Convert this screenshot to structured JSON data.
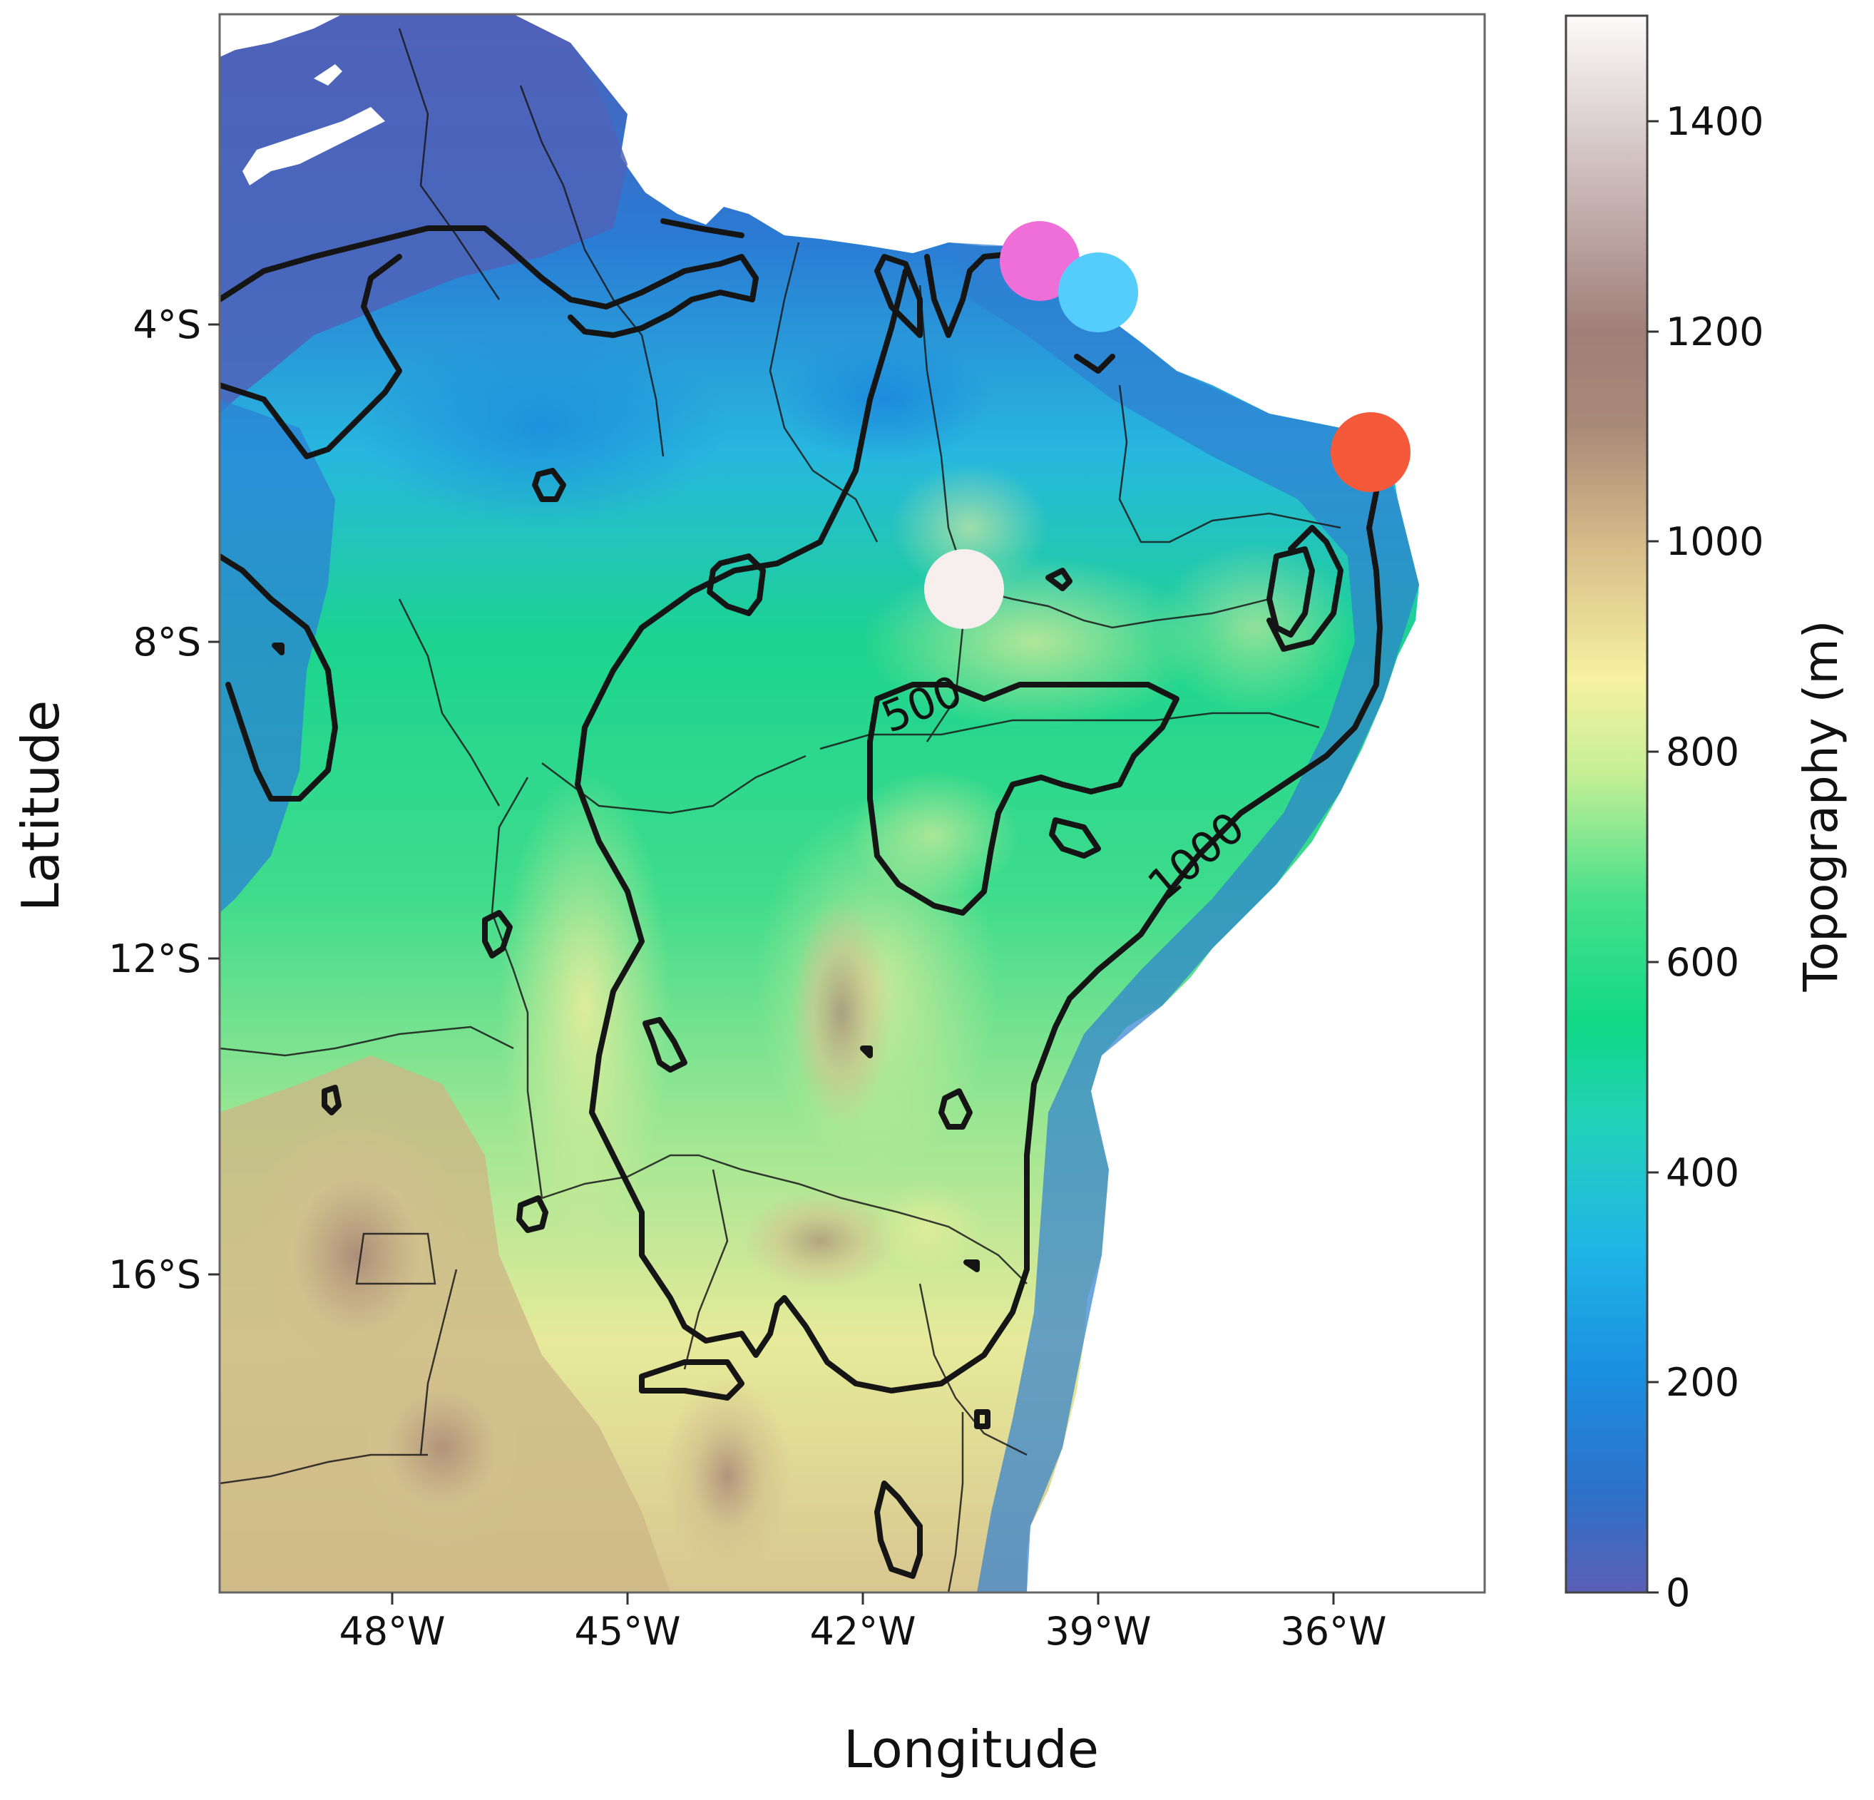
{
  "figure": {
    "xlabel": "Longitude",
    "ylabel": "Latitude",
    "colorbar_label": "Topography (m)"
  },
  "chart_data": {
    "type": "heatmap",
    "description_type": "topographic map with contours",
    "x_axis": {
      "label": "Longitude",
      "range_deg": [
        -50.5,
        -32.8
      ],
      "ticks": [
        {
          "value": -48,
          "label": "48°W"
        },
        {
          "value": -45,
          "label": "45°W"
        },
        {
          "value": -42,
          "label": "42°W"
        },
        {
          "value": -39,
          "label": "39°W"
        },
        {
          "value": -36,
          "label": "36°W"
        }
      ]
    },
    "y_axis": {
      "label": "Latitude",
      "range_deg": [
        0,
        -19.8
      ],
      "ticks": [
        {
          "value": -4,
          "label": "4°S"
        },
        {
          "value": -8,
          "label": "8°S"
        },
        {
          "value": -12,
          "label": "12°S"
        },
        {
          "value": -16,
          "label": "16°S"
        }
      ]
    },
    "colorbar": {
      "label": "Topography (m)",
      "range": [
        0,
        1500
      ],
      "ticks": [
        {
          "value": 0,
          "label": "0"
        },
        {
          "value": 200,
          "label": "200"
        },
        {
          "value": 400,
          "label": "400"
        },
        {
          "value": 600,
          "label": "600"
        },
        {
          "value": 800,
          "label": "800"
        },
        {
          "value": 1000,
          "label": "1000"
        },
        {
          "value": 1200,
          "label": "1200"
        },
        {
          "value": 1400,
          "label": "1400"
        }
      ],
      "colors": [
        "#5b5fb4",
        "#1f8fd6",
        "#1fc6e4",
        "#1fd98a",
        "#84e58a",
        "#f4f09c",
        "#c8a884",
        "#a17e74",
        "#d7c3c0",
        "#fbf9f9"
      ]
    },
    "contour_labels": [
      {
        "text": "500",
        "lon": -40.0,
        "lat": -8.8
      },
      {
        "text": "1000",
        "lon": -36.6,
        "lat": -10.7
      }
    ],
    "markers": [
      {
        "lon": -39.6,
        "lat": -3.1,
        "color": "#ef6fd8"
      },
      {
        "lon": -38.9,
        "lat": -3.6,
        "color": "#55cdfc"
      },
      {
        "lon": -35.4,
        "lat": -5.6,
        "color": "#f45a3a"
      },
      {
        "lon": -40.6,
        "lat": -7.3,
        "color": "#f7efee"
      }
    ],
    "grid": false,
    "legend": "colorbar-right"
  }
}
